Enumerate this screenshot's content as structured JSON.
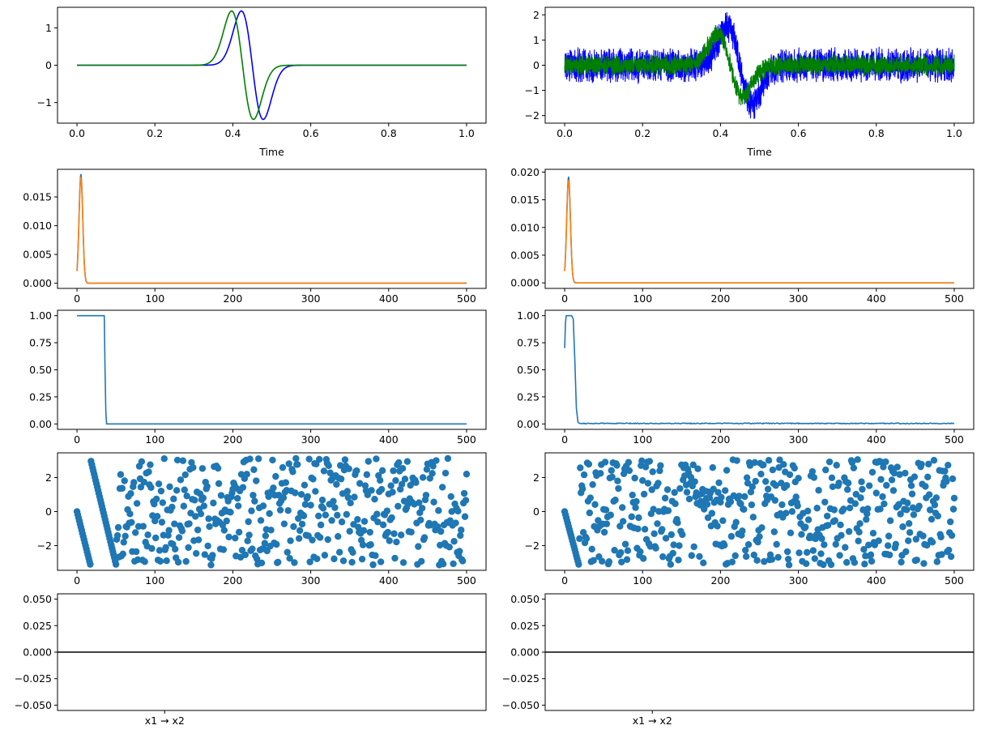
{
  "chart_data": [
    {
      "panel": "r0c0",
      "type": "line",
      "xlabel": "Time",
      "xlim": [
        -0.05,
        1.05
      ],
      "ylim": [
        -1.55,
        1.55
      ],
      "xticks": [
        0.0,
        0.2,
        0.4,
        0.6,
        0.8,
        1.0
      ],
      "xtick_labels": [
        "0.0",
        "0.2",
        "0.4",
        "0.6",
        "0.8",
        "1.0"
      ],
      "yticks": [
        -1,
        0,
        1
      ],
      "ytick_labels": [
        "−1",
        "0",
        "1"
      ],
      "series": [
        {
          "color": "#0000ff",
          "kind": "wavelet",
          "center": 0.45,
          "width": 0.028,
          "amp": 1.45,
          "noise": 0
        },
        {
          "color": "#008000",
          "kind": "wavelet",
          "center": 0.425,
          "width": 0.028,
          "amp": 1.45,
          "noise": 0
        }
      ]
    },
    {
      "panel": "r0c1",
      "type": "line",
      "xlabel": "Time",
      "xlim": [
        -0.05,
        1.05
      ],
      "ylim": [
        -2.3,
        2.3
      ],
      "xticks": [
        0.0,
        0.2,
        0.4,
        0.6,
        0.8,
        1.0
      ],
      "xtick_labels": [
        "0.0",
        "0.2",
        "0.4",
        "0.6",
        "0.8",
        "1.0"
      ],
      "yticks": [
        -2,
        -1,
        0,
        1,
        2
      ],
      "ytick_labels": [
        "−2",
        "−1",
        "0",
        "1",
        "2"
      ],
      "series": [
        {
          "color": "#0000ff",
          "kind": "noisy-wavelet",
          "center": 0.45,
          "width": 0.032,
          "amp": 1.5,
          "noise": 0.55
        },
        {
          "color": "#008000",
          "kind": "noisy-wavelet",
          "center": 0.425,
          "width": 0.032,
          "amp": 1.25,
          "noise": 0.32
        }
      ]
    },
    {
      "panel": "r1c0",
      "type": "line",
      "xlabel": "",
      "xlim": [
        -25,
        525
      ],
      "ylim": [
        -0.0009,
        0.0198
      ],
      "xticks": [
        0,
        100,
        200,
        300,
        400,
        500
      ],
      "xtick_labels": [
        "0",
        "100",
        "200",
        "300",
        "400",
        "500"
      ],
      "yticks": [
        0.0,
        0.005,
        0.01,
        0.015
      ],
      "ytick_labels": [
        "0.000",
        "0.005",
        "0.010",
        "0.015"
      ],
      "series": [
        {
          "color": "#1f77b4",
          "kind": "peak",
          "peak_x": 5,
          "peak_y": 0.0189,
          "decay": 2.4
        },
        {
          "color": "#ff7f0e",
          "kind": "peak",
          "peak_x": 5,
          "peak_y": 0.0184,
          "decay": 2.4
        }
      ]
    },
    {
      "panel": "r1c1",
      "type": "line",
      "xlabel": "",
      "xlim": [
        -25,
        525
      ],
      "ylim": [
        -0.001,
        0.0205
      ],
      "xticks": [
        0,
        100,
        200,
        300,
        400,
        500
      ],
      "xtick_labels": [
        "0",
        "100",
        "200",
        "300",
        "400",
        "500"
      ],
      "yticks": [
        0.0,
        0.005,
        0.01,
        0.015,
        0.02
      ],
      "ytick_labels": [
        "0.000",
        "0.005",
        "0.010",
        "0.015",
        "0.020"
      ],
      "series": [
        {
          "color": "#1f77b4",
          "kind": "peak",
          "peak_x": 5,
          "peak_y": 0.0191,
          "decay": 2.4
        },
        {
          "color": "#ff7f0e",
          "kind": "peak",
          "peak_x": 5,
          "peak_y": 0.0185,
          "decay": 2.4
        }
      ]
    },
    {
      "panel": "r2c0",
      "type": "line",
      "xlabel": "",
      "xlim": [
        -25,
        525
      ],
      "ylim": [
        -0.05,
        1.05
      ],
      "xticks": [
        0,
        100,
        200,
        300,
        400,
        500
      ],
      "xtick_labels": [
        "0",
        "100",
        "200",
        "300",
        "400",
        "500"
      ],
      "yticks": [
        0.0,
        0.25,
        0.5,
        0.75,
        1.0
      ],
      "ytick_labels": [
        "0.00",
        "0.25",
        "0.50",
        "0.75",
        "1.00"
      ],
      "series": [
        {
          "color": "#1f77b4",
          "kind": "step",
          "points": [
            [
              0,
              1.0
            ],
            [
              35,
              1.0
            ],
            [
              36,
              0.5
            ],
            [
              37,
              0.12
            ],
            [
              38,
              0.0
            ],
            [
              500,
              0.0
            ]
          ]
        }
      ]
    },
    {
      "panel": "r2c1",
      "type": "line",
      "xlabel": "",
      "xlim": [
        -25,
        525
      ],
      "ylim": [
        -0.05,
        1.05
      ],
      "xticks": [
        0,
        100,
        200,
        300,
        400,
        500
      ],
      "xtick_labels": [
        "0",
        "100",
        "200",
        "300",
        "400",
        "500"
      ],
      "yticks": [
        0.0,
        0.25,
        0.5,
        0.75,
        1.0
      ],
      "ytick_labels": [
        "0.00",
        "0.25",
        "0.50",
        "0.75",
        "1.00"
      ],
      "series": [
        {
          "color": "#1f77b4",
          "kind": "step",
          "noise": 0.004,
          "points": [
            [
              0,
              0.7
            ],
            [
              1,
              0.93
            ],
            [
              2,
              1.0
            ],
            [
              9,
              1.0
            ],
            [
              11,
              0.97
            ],
            [
              13,
              0.6
            ],
            [
              15,
              0.15
            ],
            [
              17,
              0.02
            ],
            [
              19,
              0.005
            ],
            [
              500,
              0.005
            ]
          ]
        }
      ]
    },
    {
      "panel": "r3c0",
      "type": "scatter",
      "xlabel": "",
      "xlim": [
        -25,
        525
      ],
      "ylim": [
        -3.45,
        3.45
      ],
      "xticks": [
        0,
        100,
        200,
        300,
        400,
        500
      ],
      "xtick_labels": [
        "0",
        "100",
        "200",
        "300",
        "400",
        "500"
      ],
      "yticks": [
        -2,
        0,
        2
      ],
      "ytick_labels": [
        "−2",
        "0",
        "2"
      ],
      "series": [
        {
          "color": "#1f77b4",
          "kind": "phase",
          "wrap_start": [
            0,
            17
          ],
          "ramp": [
            [
              17,
              3.15
            ],
            [
              50,
              -3.1
            ]
          ],
          "seed": 11,
          "n": 500
        }
      ]
    },
    {
      "panel": "r3c1",
      "type": "scatter",
      "xlabel": "",
      "xlim": [
        -25,
        525
      ],
      "ylim": [
        -3.45,
        3.45
      ],
      "xticks": [
        0,
        100,
        200,
        300,
        400,
        500
      ],
      "xtick_labels": [
        "0",
        "100",
        "200",
        "300",
        "400",
        "500"
      ],
      "yticks": [
        -2,
        0,
        2
      ],
      "ytick_labels": [
        "−2",
        "0",
        "2"
      ],
      "series": [
        {
          "color": "#1f77b4",
          "kind": "phase",
          "wrap_start": [
            0,
            18
          ],
          "ramp": null,
          "seed": 29,
          "n": 500
        }
      ]
    },
    {
      "panel": "r4c0",
      "type": "bar",
      "xlabel": "",
      "categories": [
        "x1 → x2"
      ],
      "values": [
        0
      ],
      "ylim": [
        -0.055,
        0.055
      ],
      "yticks": [
        -0.05,
        -0.025,
        0.0,
        0.025,
        0.05
      ],
      "ytick_labels": [
        "−0.050",
        "−0.025",
        "0.000",
        "0.025",
        "0.050"
      ],
      "hline": 0.0
    },
    {
      "panel": "r4c1",
      "type": "bar",
      "xlabel": "",
      "categories": [
        "x1 → x2"
      ],
      "values": [
        0
      ],
      "ylim": [
        -0.055,
        0.055
      ],
      "yticks": [
        -0.05,
        -0.025,
        0.0,
        0.025,
        0.05
      ],
      "ytick_labels": [
        "−0.050",
        "−0.025",
        "0.000",
        "0.025",
        "0.050"
      ],
      "hline": 0.0
    }
  ]
}
